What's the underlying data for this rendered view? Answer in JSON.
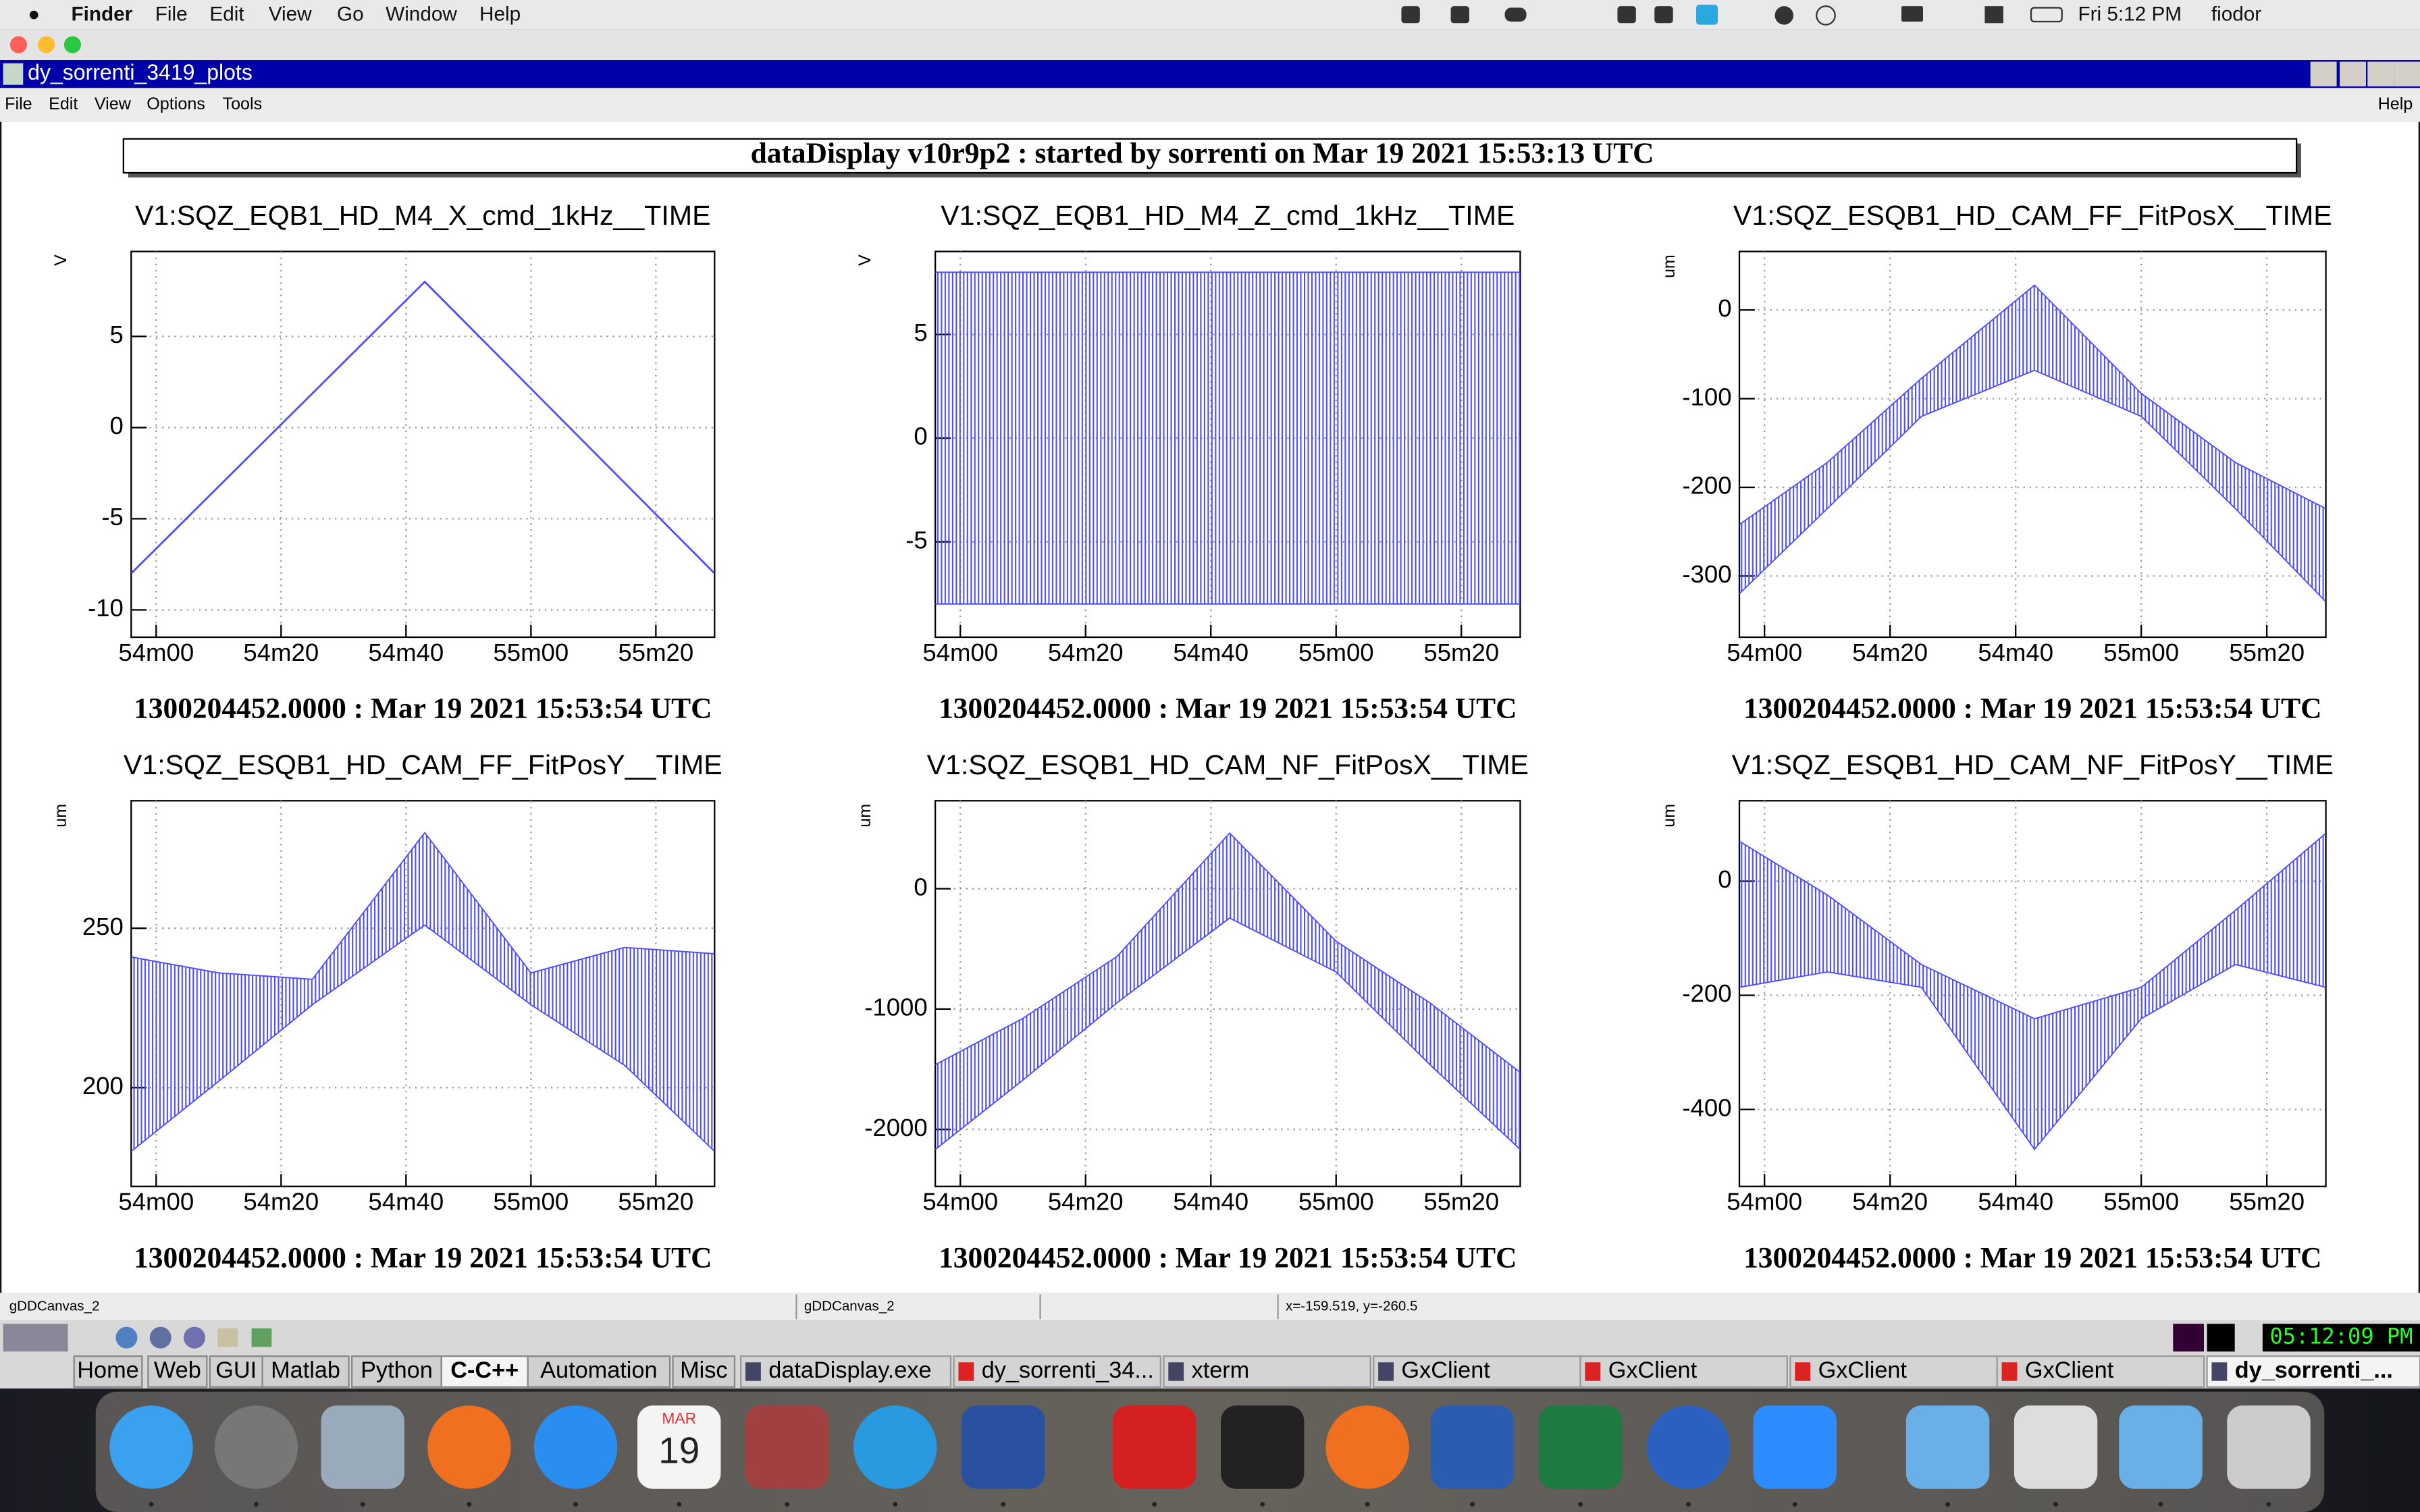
{
  "menubar": {
    "app": "Finder",
    "items": [
      "File",
      "Edit",
      "View",
      "Go",
      "Window",
      "Help"
    ],
    "clock": "Fri 5:12 PM",
    "user": "fiodor"
  },
  "window": {
    "title": "dy_sorrenti_3419_plots",
    "menus": [
      "File",
      "Edit",
      "View",
      "Options",
      "Tools"
    ],
    "help": "Help"
  },
  "header": "dataDisplay v10r9p2 : started by sorrenti on Mar 19 2021 15:53:13 UTC",
  "chart_data": [
    {
      "type": "line",
      "title": "V1:SQZ_EQB1_HD_M4_X_cmd_1kHz__TIME",
      "subtitle": "1300204452.0000 : Mar 19 2021 15:53:54 UTC",
      "y_label": "V",
      "x": [
        3236,
        3283,
        3329.4
      ],
      "series": [
        {
          "color": "#4b4bff",
          "values": [
            -8,
            8,
            -8
          ]
        }
      ],
      "xlim": [
        3236,
        3329.4
      ],
      "xticks": [
        {
          "value": 3240,
          "label": "54m00"
        },
        {
          "value": 3260,
          "label": "54m20"
        },
        {
          "value": 3280,
          "label": "54m40"
        },
        {
          "value": 3300,
          "label": "55m00"
        },
        {
          "value": 3320,
          "label": "55m20"
        }
      ],
      "ylim": [
        -11.5,
        9.66
      ],
      "yticks": [
        -10,
        -5,
        0,
        5
      ],
      "grid": true
    },
    {
      "type": "range",
      "title": "V1:SQZ_EQB1_HD_M4_Z_cmd_1kHz__TIME",
      "subtitle": "1300204452.0000 : Mar 19 2021 15:53:54 UTC",
      "y_label": "V",
      "x": [
        3236,
        3329.4
      ],
      "series": [
        {
          "color": "#4b4bff",
          "values": [
            8,
            8
          ]
        },
        {
          "color": "#4b4bff",
          "values": [
            -8,
            -8
          ]
        }
      ],
      "xlim": [
        3236,
        3329.4
      ],
      "xticks": [
        {
          "value": 3240,
          "label": "54m00"
        },
        {
          "value": 3260,
          "label": "54m20"
        },
        {
          "value": 3280,
          "label": "54m40"
        },
        {
          "value": 3300,
          "label": "55m00"
        },
        {
          "value": 3320,
          "label": "55m20"
        }
      ],
      "ylim": [
        -9.6,
        9.0
      ],
      "yticks": [
        -5,
        0,
        5
      ],
      "grid": true
    },
    {
      "type": "range",
      "title": "V1:SQZ_ESQB1_HD_CAM_FF_FitPosX__TIME",
      "subtitle": "1300204452.0000 : Mar 19 2021 15:53:54 UTC",
      "y_label": "um",
      "x": [
        3236,
        3250,
        3265,
        3283,
        3300,
        3315,
        3329.4
      ],
      "series": [
        {
          "color": "#4b4bff",
          "values": [
            -242,
            -172,
            -77,
            28,
            -94,
            -172,
            -224
          ]
        },
        {
          "color": "#4b4bff",
          "values": [
            -320,
            -224,
            -120,
            -68,
            -120,
            -224,
            -329
          ]
        }
      ],
      "xlim": [
        3236,
        3329.4
      ],
      "xticks": [
        {
          "value": 3240,
          "label": "54m00"
        },
        {
          "value": 3260,
          "label": "54m20"
        },
        {
          "value": 3280,
          "label": "54m40"
        },
        {
          "value": 3300,
          "label": "55m00"
        },
        {
          "value": 3320,
          "label": "55m20"
        }
      ],
      "ylim": [
        -369,
        66
      ],
      "yticks": [
        -300,
        -200,
        -100,
        0
      ],
      "grid": true
    },
    {
      "type": "range",
      "title": "V1:SQZ_ESQB1_HD_CAM_FF_FitPosY__TIME",
      "subtitle": "1300204452.0000 : Mar 19 2021 15:53:54 UTC",
      "y_label": "um",
      "x": [
        3236,
        3250,
        3265,
        3283,
        3300,
        3315,
        3329.4
      ],
      "series": [
        {
          "color": "#4b4bff",
          "values": [
            241,
            236,
            234,
            280,
            236,
            244,
            242
          ]
        },
        {
          "color": "#4b4bff",
          "values": [
            180,
            202,
            226,
            251,
            226,
            207,
            180
          ]
        }
      ],
      "xlim": [
        3236,
        3329.4
      ],
      "xticks": [
        {
          "value": 3240,
          "label": "54m00"
        },
        {
          "value": 3260,
          "label": "54m20"
        },
        {
          "value": 3280,
          "label": "54m40"
        },
        {
          "value": 3300,
          "label": "55m00"
        },
        {
          "value": 3320,
          "label": "55m20"
        }
      ],
      "ylim": [
        169,
        290
      ],
      "yticks": [
        200,
        250
      ],
      "grid": true
    },
    {
      "type": "range",
      "title": "V1:SQZ_ESQB1_HD_CAM_NF_FitPosX__TIME",
      "subtitle": "1300204452.0000 : Mar 19 2021 15:53:54 UTC",
      "y_label": "um",
      "x": [
        3236,
        3250,
        3265,
        3283,
        3300,
        3315,
        3329.4
      ],
      "series": [
        {
          "color": "#4b4bff",
          "values": [
            -1462,
            -1077,
            -564,
            462,
            -436,
            -949,
            -1526
          ]
        },
        {
          "color": "#4b4bff",
          "values": [
            -2167,
            -1590,
            -949,
            -244,
            -692,
            -1462,
            -2167
          ]
        }
      ],
      "xlim": [
        3236,
        3329.4
      ],
      "xticks": [
        {
          "value": 3240,
          "label": "54m00"
        },
        {
          "value": 3260,
          "label": "54m20"
        },
        {
          "value": 3280,
          "label": "54m40"
        },
        {
          "value": 3300,
          "label": "55m00"
        },
        {
          "value": 3320,
          "label": "55m20"
        }
      ],
      "ylim": [
        -2474,
        731
      ],
      "yticks": [
        -2000,
        -1000,
        0
      ],
      "grid": true
    },
    {
      "type": "range",
      "title": "V1:SQZ_ESQB1_HD_CAM_NF_FitPosY__TIME",
      "subtitle": "1300204452.0000 : Mar 19 2021 15:53:54 UTC",
      "y_label": "um",
      "x": [
        3236,
        3250,
        3265,
        3283,
        3300,
        3315,
        3329.4
      ],
      "series": [
        {
          "color": "#4b4bff",
          "values": [
            70,
            -24,
            -146,
            -241,
            -186,
            -51,
            84
          ]
        },
        {
          "color": "#4b4bff",
          "values": [
            -186,
            -159,
            -186,
            -470,
            -241,
            -146,
            -186
          ]
        }
      ],
      "xlim": [
        3236,
        3329.4
      ],
      "xticks": [
        {
          "value": 3240,
          "label": "54m00"
        },
        {
          "value": 3260,
          "label": "54m20"
        },
        {
          "value": 3280,
          "label": "54m40"
        },
        {
          "value": 3300,
          "label": "55m00"
        },
        {
          "value": 3320,
          "label": "55m20"
        }
      ],
      "ylim": [
        -535,
        141
      ],
      "yticks": [
        -400,
        -200,
        0
      ],
      "grid": true
    }
  ],
  "status": [
    "gDDCanvas_2",
    "gDDCanvas_2",
    "x=-159.519, y=-260.5"
  ],
  "taskbar": {
    "clock": "05:12:09 PM",
    "tabs": [
      "Home",
      "Web",
      "GUI",
      "Matlab",
      "Python",
      "C-C++",
      "Automation",
      "Misc"
    ],
    "windows": [
      "dataDisplay.exe",
      "dy_sorrenti_34...",
      "xterm",
      "GxClient",
      "GxClient",
      "GxClient",
      "GxClient",
      "dy_sorrenti_..."
    ]
  },
  "dock": {
    "calendar_month": "MAR",
    "calendar_day": "19"
  }
}
